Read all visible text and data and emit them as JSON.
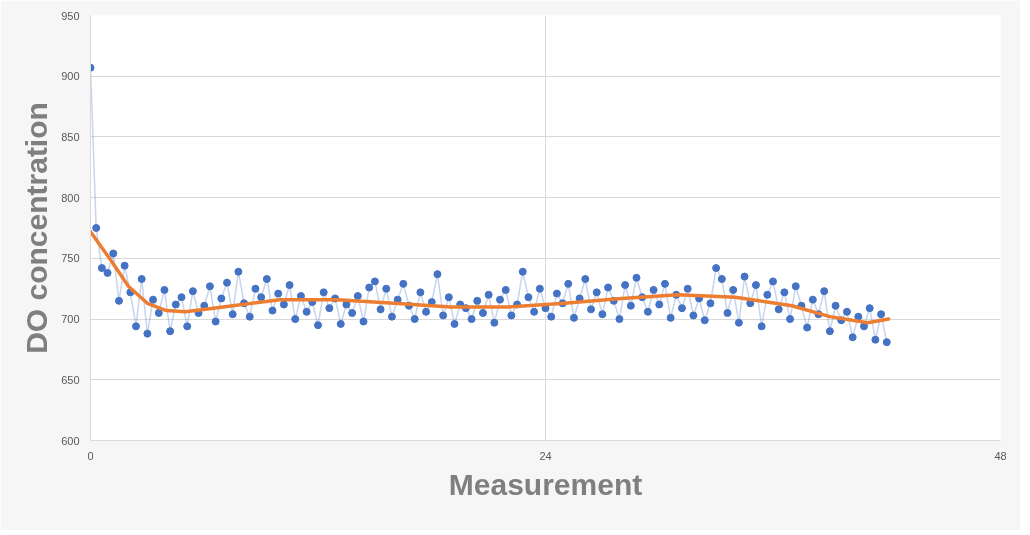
{
  "chart_data": {
    "type": "line",
    "xlabel": "Measurement",
    "ylabel": "DO concentration",
    "xlim": [
      0,
      48
    ],
    "xticks": [
      0,
      24,
      48
    ],
    "ylim": [
      600,
      950
    ],
    "yticks": [
      600,
      650,
      700,
      750,
      800,
      850,
      900,
      950
    ],
    "grid": true,
    "series": [
      {
        "marker": "circle",
        "color": "#4472c4",
        "x": [
          0,
          0.3,
          0.6,
          0.9,
          1.2,
          1.5,
          1.8,
          2.1,
          2.4,
          2.7,
          3.0,
          3.3,
          3.6,
          3.9,
          4.2,
          4.5,
          4.8,
          5.1,
          5.4,
          5.7,
          6.0,
          6.3,
          6.6,
          6.9,
          7.2,
          7.5,
          7.8,
          8.1,
          8.4,
          8.7,
          9.0,
          9.3,
          9.6,
          9.9,
          10.2,
          10.5,
          10.8,
          11.1,
          11.4,
          11.7,
          12.0,
          12.3,
          12.6,
          12.9,
          13.2,
          13.5,
          13.8,
          14.1,
          14.4,
          14.7,
          15.0,
          15.3,
          15.6,
          15.9,
          16.2,
          16.5,
          16.8,
          17.1,
          17.4,
          17.7,
          18.0,
          18.3,
          18.6,
          18.9,
          19.2,
          19.5,
          19.8,
          20.1,
          20.4,
          20.7,
          21.0,
          21.3,
          21.6,
          21.9,
          22.2,
          22.5,
          22.8,
          23.1,
          23.4,
          23.7,
          24.0,
          24.3,
          24.6,
          24.9,
          25.2,
          25.5,
          25.8,
          26.1,
          26.4,
          26.7,
          27.0,
          27.3,
          27.6,
          27.9,
          28.2,
          28.5,
          28.8,
          29.1,
          29.4,
          29.7,
          30.0,
          30.3,
          30.6,
          30.9,
          31.2,
          31.5,
          31.8,
          32.1,
          32.4,
          32.7,
          33.0,
          33.3,
          33.6,
          33.9,
          34.2,
          34.5,
          34.8,
          35.1,
          35.4,
          35.7,
          36.0,
          36.3,
          36.6,
          36.9,
          37.2,
          37.5,
          37.8,
          38.1,
          38.4,
          38.7,
          39.0,
          39.3,
          39.6,
          39.9,
          40.2,
          40.5,
          40.8,
          41.1,
          41.4,
          41.7,
          42.0
        ],
        "values": [
          907,
          775,
          742,
          738,
          754,
          715,
          744,
          722,
          694,
          733,
          688,
          716,
          705,
          724,
          690,
          712,
          718,
          694,
          723,
          705,
          711,
          727,
          698,
          717,
          730,
          704,
          739,
          713,
          702,
          725,
          718,
          733,
          707,
          721,
          712,
          728,
          700,
          719,
          706,
          714,
          695,
          722,
          709,
          717,
          696,
          712,
          705,
          719,
          698,
          726,
          731,
          708,
          725,
          702,
          716,
          729,
          711,
          700,
          722,
          706,
          714,
          737,
          703,
          718,
          696,
          712,
          709,
          700,
          715,
          705,
          720,
          697,
          716,
          724,
          703,
          712,
          739,
          718,
          706,
          725,
          709,
          702,
          721,
          713,
          729,
          701,
          717,
          733,
          708,
          722,
          704,
          726,
          715,
          700,
          728,
          711,
          734,
          718,
          706,
          724,
          712,
          729,
          701,
          720,
          709,
          725,
          703,
          717,
          699,
          713,
          742,
          733,
          705,
          724,
          697,
          735,
          713,
          728,
          694,
          720,
          731,
          708,
          722,
          700,
          727,
          711,
          693,
          716,
          704,
          723,
          690,
          711,
          699,
          706,
          685,
          702,
          694,
          709,
          683,
          704,
          681
        ]
      },
      {
        "type": "line",
        "marker": "none",
        "color": "#ed7d31",
        "x": [
          0,
          1,
          2,
          3,
          4,
          5,
          7,
          10,
          13,
          16,
          19,
          22,
          25,
          28,
          31,
          34,
          37,
          39,
          41,
          42.1
        ],
        "values": [
          772,
          750,
          727,
          713,
          707,
          706,
          710,
          716,
          716,
          713,
          710,
          710,
          713,
          717,
          720,
          718,
          711,
          702,
          697,
          700
        ]
      }
    ]
  }
}
